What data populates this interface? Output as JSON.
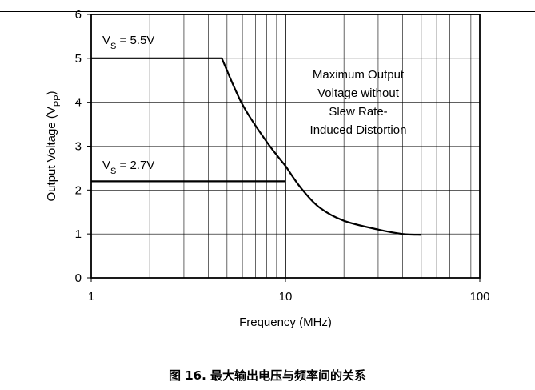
{
  "caption": "图 16. 最大输出电压与频率间的关系",
  "chart_data": {
    "type": "line",
    "xlabel": "Frequency (MHz)",
    "ylabel_main": "Output Voltage (V",
    "ylabel_sub": "PP",
    "ylabel_close": ")",
    "x_scale": "log",
    "xlim": [
      1,
      100
    ],
    "ylim": [
      0,
      6
    ],
    "x_ticks": [
      1,
      10,
      100
    ],
    "x_tick_labels": [
      "1",
      "10",
      "100"
    ],
    "y_ticks": [
      0,
      1,
      2,
      3,
      4,
      5,
      6
    ],
    "y_tick_labels": [
      "0",
      "1",
      "2",
      "3",
      "4",
      "5",
      "6"
    ],
    "grid": true,
    "series": [
      {
        "name_main": "V",
        "name_sub": "S",
        "name_rest": " = 5.5V",
        "x": [
          1,
          4.7,
          6,
          8,
          10
        ],
        "y": [
          5.0,
          5.0,
          3.95,
          3.1,
          2.55
        ]
      },
      {
        "name_main": "V",
        "name_sub": "S",
        "name_rest": " = 2.7V",
        "x": [
          1,
          10
        ],
        "y": [
          2.2,
          2.2
        ]
      },
      {
        "name": "",
        "x": [
          10,
          12,
          15,
          20,
          30,
          40,
          50
        ],
        "y": [
          2.55,
          2.05,
          1.6,
          1.3,
          1.1,
          1.0,
          0.98
        ]
      }
    ],
    "annotation": [
      "Maximum Output",
      "Voltage without",
      "Slew Rate-",
      "Induced Distortion"
    ],
    "colors": {
      "line": "#000000",
      "grid": "#000000",
      "background": "#ffffff"
    }
  }
}
